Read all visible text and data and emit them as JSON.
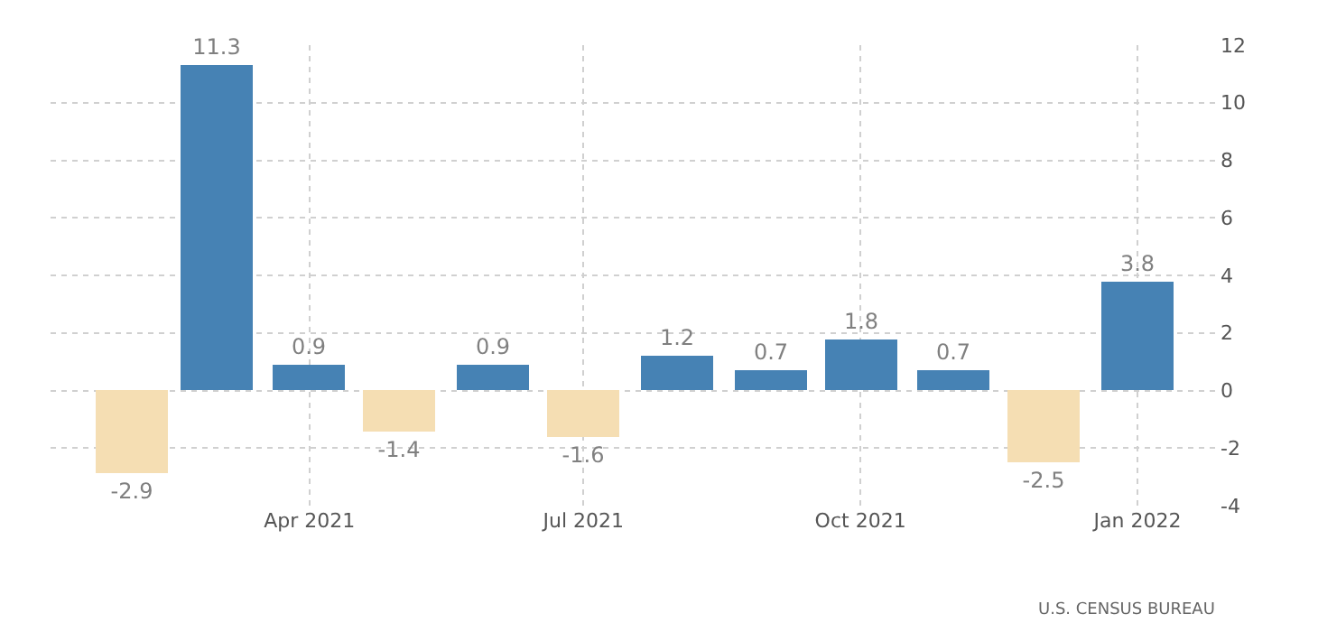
{
  "chart_data": {
    "type": "bar",
    "x": [
      "2021-02",
      "2021-03",
      "2021-04",
      "2021-05",
      "2021-06",
      "2021-07",
      "2021-08",
      "2021-09",
      "2021-10",
      "2021-11",
      "2021-12",
      "2022-01"
    ],
    "values": [
      -2.9,
      11.3,
      0.9,
      -1.4,
      0.9,
      -1.6,
      1.2,
      0.7,
      1.8,
      0.7,
      -2.5,
      3.8
    ],
    "colors": [
      "#f5deb3",
      "#4682b4",
      "#4682b4",
      "#f5deb3",
      "#4682b4",
      "#f5deb3",
      "#4682b4",
      "#4682b4",
      "#4682b4",
      "#4682b4",
      "#f5deb3",
      "#4682b4"
    ],
    "data_labels": true,
    "xlim": [
      "2021-01-05",
      "2022-01-28"
    ],
    "xticks": [
      {
        "value": "2021-04",
        "label": "Apr 2021"
      },
      {
        "value": "2021-07",
        "label": "Jul 2021"
      },
      {
        "value": "2021-10",
        "label": "Oct 2021"
      },
      {
        "value": "2022-01",
        "label": "Jan 2022"
      }
    ],
    "ylim": [
      -4,
      12
    ],
    "yticks": [
      -4,
      -2,
      0,
      2,
      4,
      6,
      8,
      10,
      12
    ],
    "grid": true,
    "annotations": [
      "U.S. CENSUS BUREAU"
    ]
  }
}
